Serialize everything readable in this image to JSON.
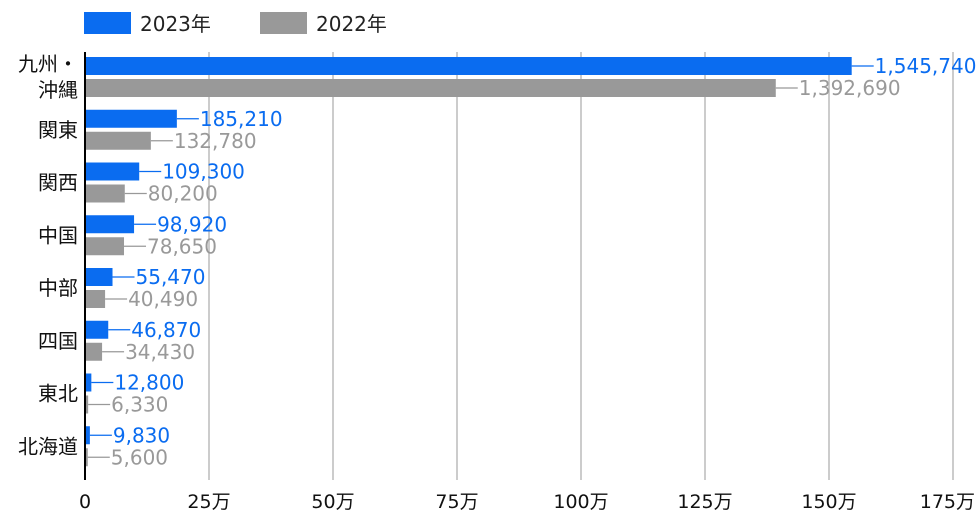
{
  "chart_data": {
    "type": "bar",
    "orientation": "horizontal",
    "categories": [
      [
        "九州・",
        "沖縄"
      ],
      [
        "関東"
      ],
      [
        "関西"
      ],
      [
        "中国"
      ],
      [
        "中部"
      ],
      [
        "四国"
      ],
      [
        "東北"
      ],
      [
        "北海道"
      ]
    ],
    "series": [
      {
        "name": "2023年",
        "color": "#0a6cf0",
        "values": [
          1545740,
          185210,
          109300,
          98920,
          55470,
          46870,
          12800,
          9830
        ],
        "labels": [
          "1,545,740",
          "185,210",
          "109,300",
          "98,920",
          "55,470",
          "46,870",
          "12,800",
          "9,830"
        ]
      },
      {
        "name": "2022年",
        "color": "#999999",
        "values": [
          1392690,
          132780,
          80200,
          78650,
          40490,
          34430,
          6330,
          5600
        ],
        "labels": [
          "1,392,690",
          "132,780",
          "80,200",
          "78,650",
          "40,490",
          "34,430",
          "6,330",
          "5,600"
        ]
      }
    ],
    "xlim": [
      0,
      1750000
    ],
    "xticks": [
      0,
      250000,
      500000,
      750000,
      1000000,
      1250000,
      1500000,
      1750000
    ],
    "xtick_labels": [
      "0",
      "25万",
      "50万",
      "75万",
      "100万",
      "125万",
      "150万",
      "175万"
    ],
    "grid": true,
    "legend_position": "top-left",
    "title": "",
    "xlabel": "",
    "ylabel": ""
  }
}
